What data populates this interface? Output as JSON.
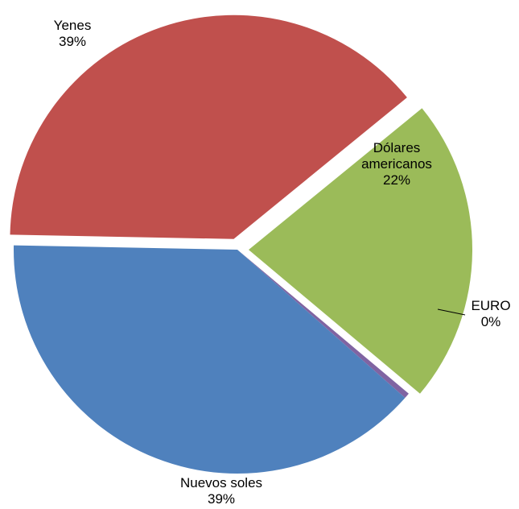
{
  "chart_data": {
    "type": "pie",
    "title": "",
    "start_angle_deg": -39.2,
    "direction": "clockwise",
    "slices": [
      {
        "name": "Dólares americanos",
        "name_lines": [
          "Dólares",
          "americanos"
        ],
        "value": 22.0,
        "label": "22%",
        "color": "#9BBB59",
        "exploded": true
      },
      {
        "name": "EURO",
        "name_lines": [
          "EURO"
        ],
        "value": 0.4,
        "label": "0%",
        "color": "#8064A2",
        "exploded": false
      },
      {
        "name": "Nuevos soles",
        "name_lines": [
          "Nuevos soles"
        ],
        "value": 38.8,
        "label": "39%",
        "color": "#4F81BD",
        "exploded": false
      },
      {
        "name": "Yenes",
        "name_lines": [
          "Yenes"
        ],
        "value": 38.8,
        "label": "39%",
        "color": "#C0504D",
        "exploded": true
      }
    ]
  }
}
